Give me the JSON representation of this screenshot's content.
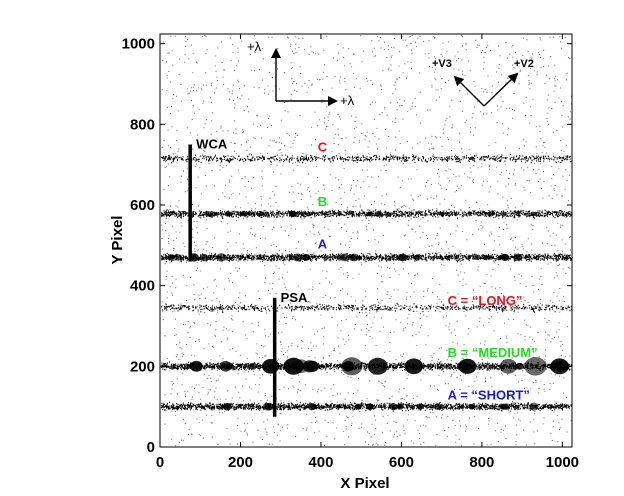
{
  "chart_data": {
    "type": "scatter",
    "title": "",
    "xlabel": "X Pixel",
    "ylabel": "Y Pixel",
    "xlim": [
      0,
      1024
    ],
    "ylim": [
      0,
      1024
    ],
    "x_ticks": [
      0,
      200,
      400,
      600,
      800,
      1000
    ],
    "y_ticks": [
      0,
      200,
      400,
      600,
      800,
      1000
    ],
    "grid": false,
    "stripes": [
      {
        "name": "WCA C",
        "y": 715,
        "strength": 0.35
      },
      {
        "name": "WCA B",
        "y": 578,
        "strength": 0.8
      },
      {
        "name": "WCA A",
        "y": 470,
        "strength": 0.9
      },
      {
        "name": "PSA C",
        "y": 345,
        "strength": 0.3
      },
      {
        "name": "PSA B",
        "y": 200,
        "strength": 1.0
      },
      {
        "name": "PSA A",
        "y": 100,
        "strength": 0.9
      }
    ],
    "apertures": [
      {
        "label": "WCA",
        "x": 75,
        "y_from": 460,
        "y_to": 750
      },
      {
        "label": "PSA",
        "x": 285,
        "y_from": 75,
        "y_to": 370
      }
    ],
    "annotations": [
      {
        "text": "C",
        "x": 392,
        "y": 745,
        "color": "#e8141b"
      },
      {
        "text": "B",
        "x": 392,
        "y": 610,
        "color": "#22dd22"
      },
      {
        "text": "A",
        "x": 392,
        "y": 505,
        "color": "#1a1ad4"
      },
      {
        "text": "C = “LONG”",
        "x": 715,
        "y": 365,
        "color": "#e8141b"
      },
      {
        "text": "B = “MEDIUM”",
        "x": 715,
        "y": 235,
        "color": "#22dd22"
      },
      {
        "text": "A = “SHORT”",
        "x": 715,
        "y": 130,
        "color": "#1a1ad4"
      }
    ],
    "direction_arrows": {
      "lambda_up": "+λ",
      "lambda_right": "+λ",
      "v3": "+V3",
      "v2": "+V2"
    }
  }
}
